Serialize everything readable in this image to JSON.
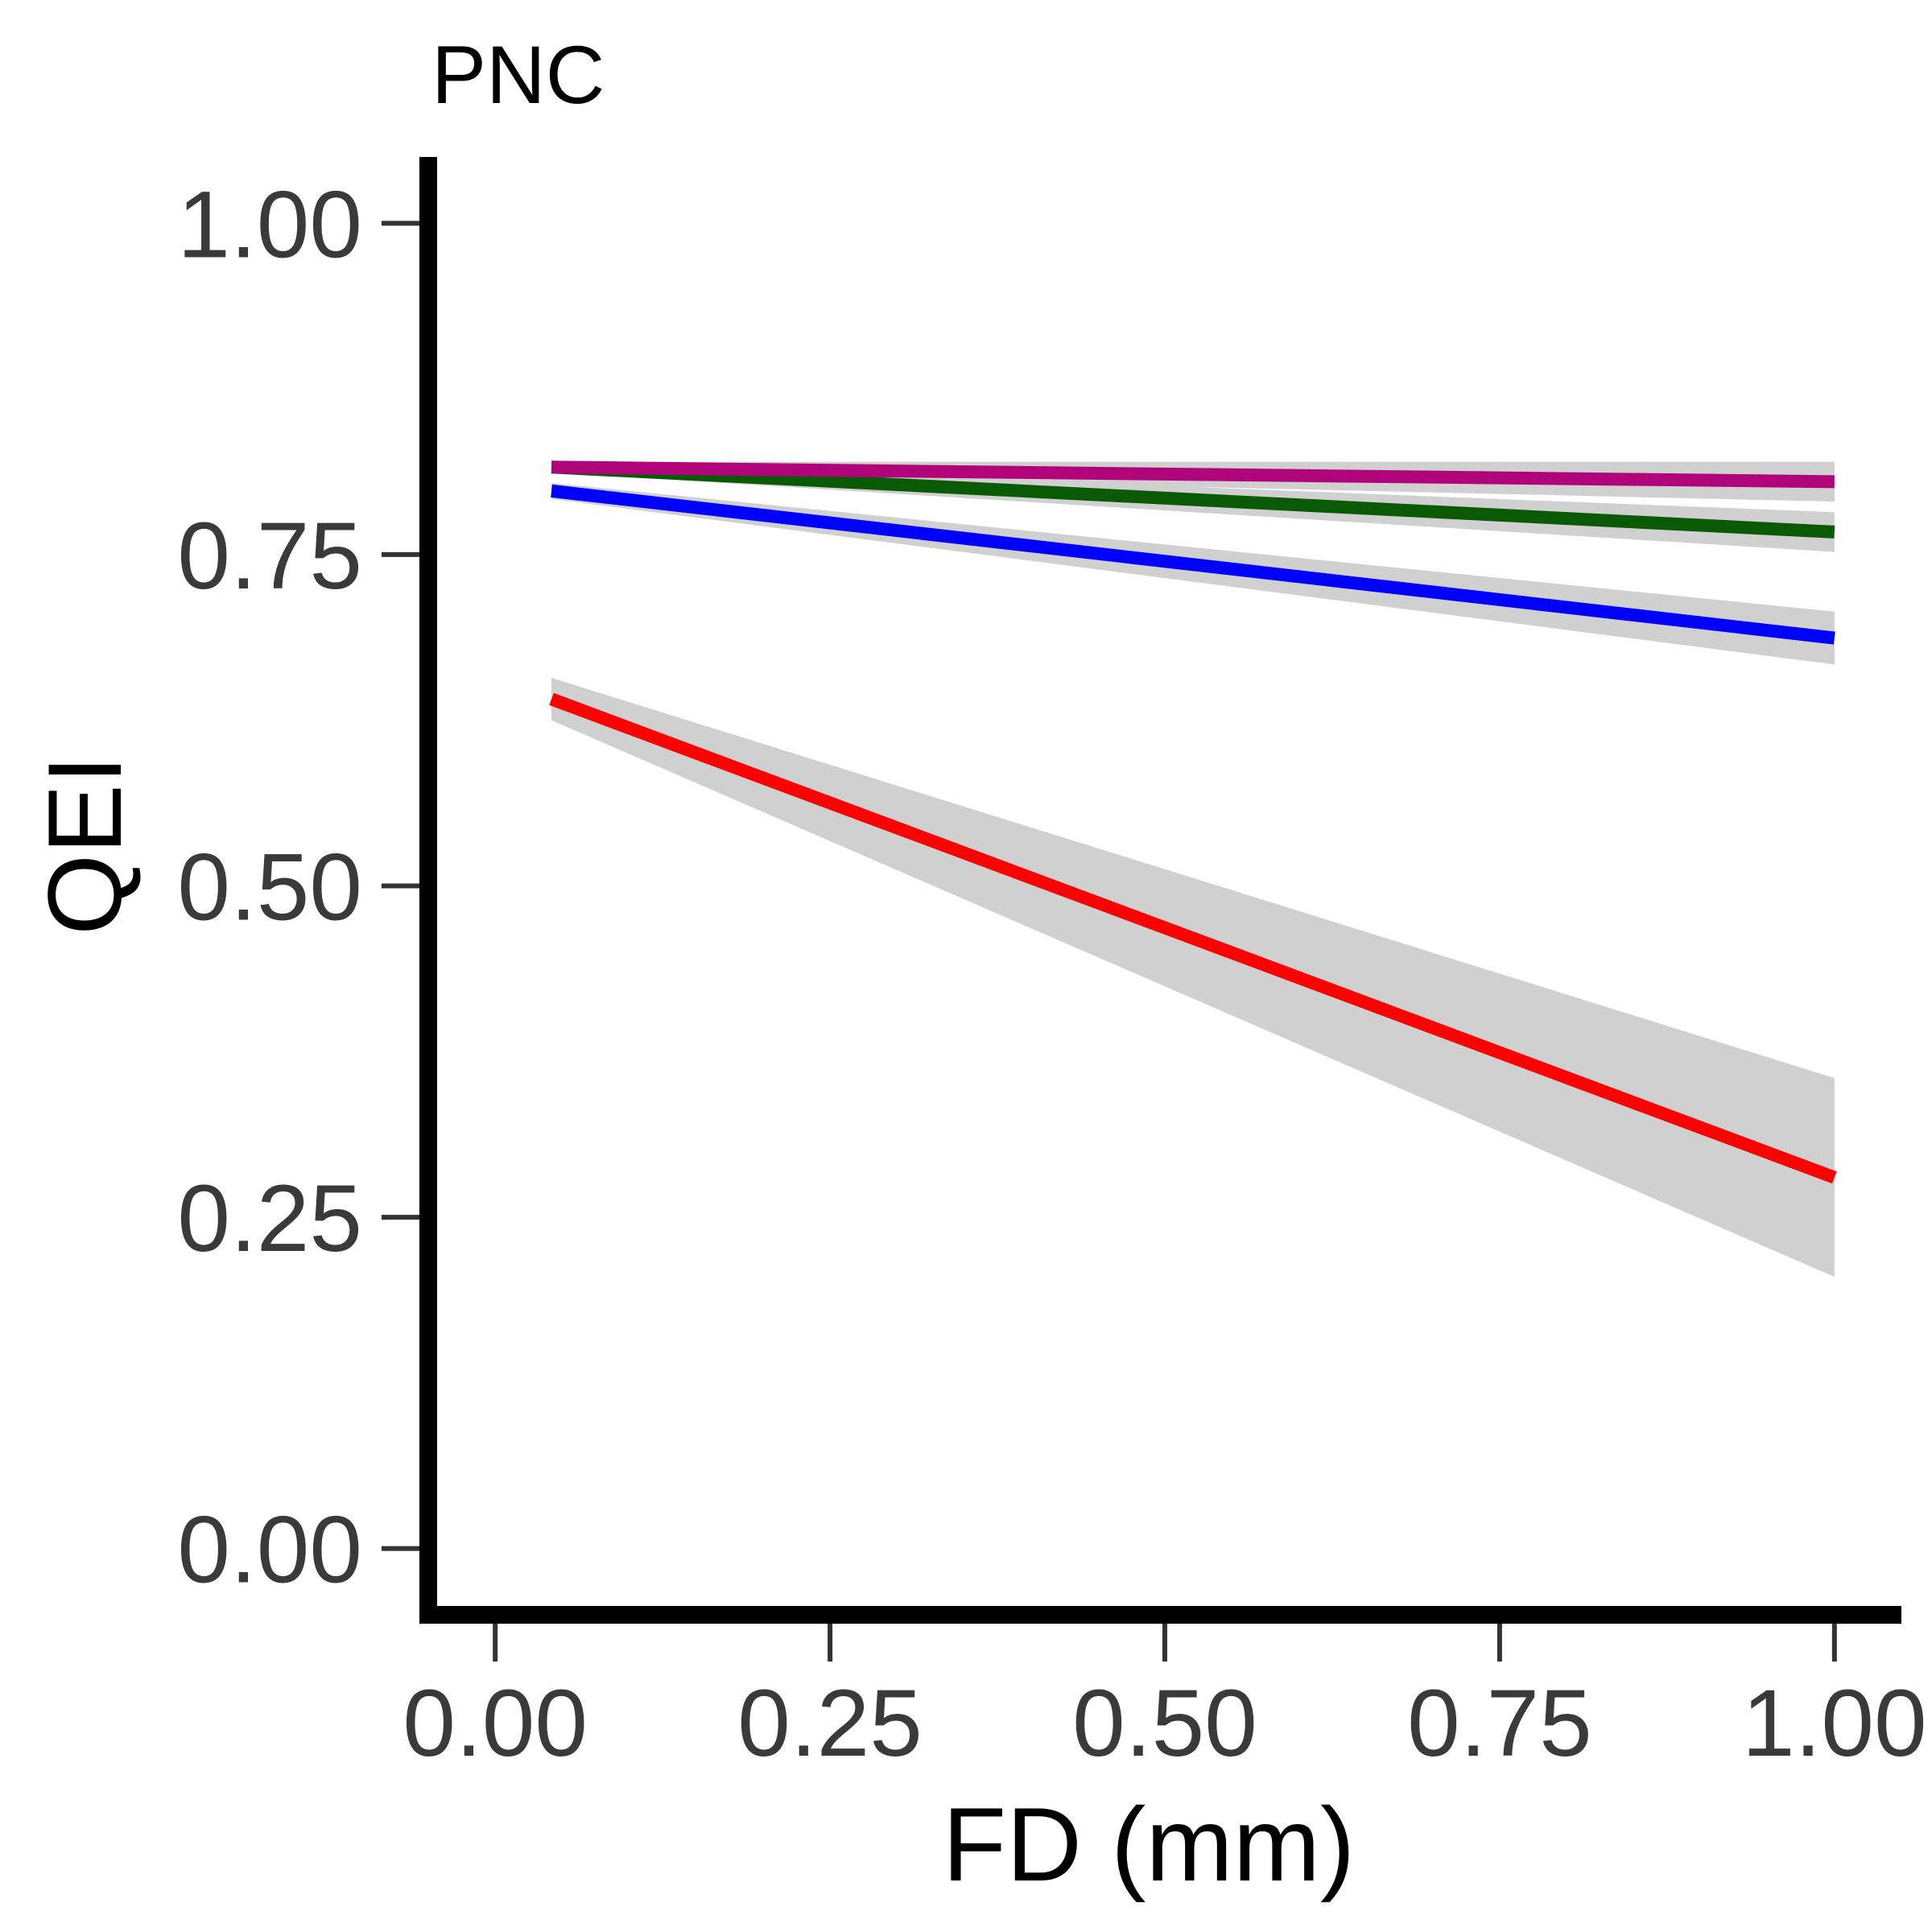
{
  "chart_data": {
    "type": "line",
    "title": "PNC",
    "xlabel": "FD (mm)",
    "ylabel": "QEI",
    "xlim": [
      -0.05,
      1.05
    ],
    "ylim": [
      -0.05,
      1.05
    ],
    "xticks": [
      "0.00",
      "0.25",
      "0.50",
      "0.75",
      "1.00"
    ],
    "yticks": [
      "0.00",
      "0.25",
      "0.50",
      "0.75",
      "1.00"
    ],
    "grid": false,
    "legend": "none",
    "series": [
      {
        "color": "#ff0000",
        "x": [
          0.042,
          1.0
        ],
        "y": [
          0.641,
          0.28
        ],
        "ci_lower": [
          0.625,
          0.205
        ],
        "ci_upper": [
          0.657,
          0.355
        ]
      },
      {
        "color": "#0000ff",
        "x": [
          0.042,
          1.0
        ],
        "y": [
          0.798,
          0.687
        ],
        "ci_lower": [
          0.792,
          0.667
        ],
        "ci_upper": [
          0.804,
          0.707
        ]
      },
      {
        "color": "#0a5a05",
        "x": [
          0.042,
          1.0
        ],
        "y": [
          0.816,
          0.767
        ],
        "ci_lower": [
          0.812,
          0.752
        ],
        "ci_upper": [
          0.82,
          0.782
        ]
      },
      {
        "color": "#b0047a",
        "x": [
          0.042,
          1.0
        ],
        "y": [
          0.816,
          0.805
        ],
        "ci_lower": [
          0.812,
          0.79
        ],
        "ci_upper": [
          0.82,
          0.82
        ]
      }
    ],
    "band_color": "#d0d0d0",
    "axis_color": "#000000",
    "tick_color": "#333333",
    "tick_label_color": "#3a3a3a"
  }
}
